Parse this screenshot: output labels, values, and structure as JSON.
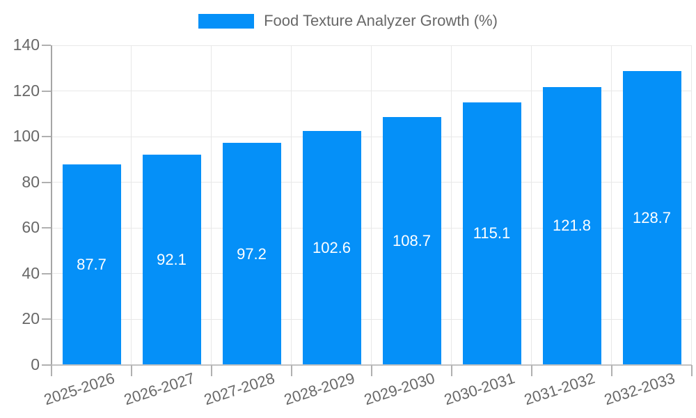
{
  "legend": {
    "label": "Food Texture Analyzer Growth (%)"
  },
  "chart_data": {
    "type": "bar",
    "title": "Food Texture Analyzer Growth (%)",
    "categories": [
      "2025-2026",
      "2026-2027",
      "2027-2028",
      "2028-2029",
      "2029-2030",
      "2030-2031",
      "2031-2032",
      "2032-2033"
    ],
    "values": [
      87.7,
      92.1,
      97.2,
      102.6,
      108.7,
      115.1,
      121.8,
      128.7
    ],
    "xlabel": "",
    "ylabel": "",
    "ylim": [
      0,
      140
    ],
    "ytick_step": 20,
    "yticks": [
      0,
      20,
      40,
      60,
      80,
      100,
      120,
      140
    ],
    "grid": true,
    "legend_position": "top-center",
    "value_label_position": "inside-center"
  },
  "colors": {
    "bar": "#0590f8",
    "value_label": "#ffffff",
    "tick_text": "#686868",
    "grid_line": "#e8e8e8",
    "axis_line": "#a6a6a6",
    "background": "#ffffff"
  }
}
